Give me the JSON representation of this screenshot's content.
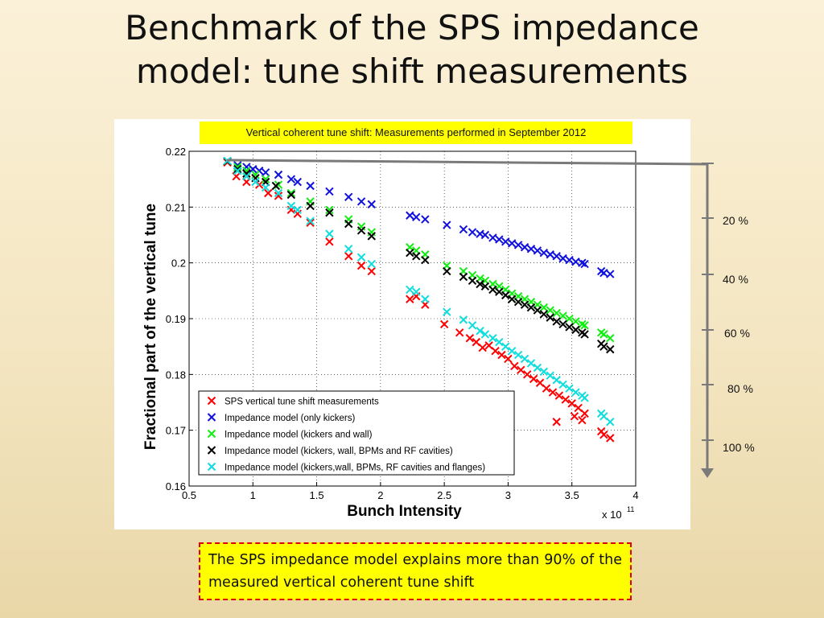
{
  "slide": {
    "title_line1": "Benchmark of the SPS impedance",
    "title_line2": "model: tune shift measurements",
    "plot_caption": "Vertical coherent tune shift: Measurements performed in September 2012",
    "conclusion": "The SPS impedance model explains more than 90% of the measured vertical coherent tune shift"
  },
  "scale_bar": {
    "labels": [
      "20 %",
      "40 %",
      "60 %",
      "80 %",
      "100 %"
    ]
  },
  "chart_data": {
    "type": "scatter",
    "xlabel": "Bunch Intensity",
    "ylabel": "Fractional part of the vertical tune",
    "x_multiplier_label": "x 10",
    "x_multiplier_exp": "11",
    "xlim": [
      0.5,
      4
    ],
    "ylim": [
      0.16,
      0.22
    ],
    "xticks": [
      "0.5",
      "1",
      "1.5",
      "2",
      "2.5",
      "3",
      "3.5",
      "4"
    ],
    "yticks": [
      "0.16",
      "0.17",
      "0.18",
      "0.19",
      "0.2",
      "0.21",
      "0.22"
    ],
    "grid": true,
    "legend_position": "bottom-left",
    "series": [
      {
        "name": "SPS vertical tune shift measurements",
        "color": "#ff0000",
        "points": [
          [
            0.8,
            0.218
          ],
          [
            0.87,
            0.2155
          ],
          [
            0.95,
            0.2145
          ],
          [
            1.05,
            0.214
          ],
          [
            1.12,
            0.2125
          ],
          [
            1.2,
            0.212
          ],
          [
            1.3,
            0.2095
          ],
          [
            1.35,
            0.2088
          ],
          [
            1.45,
            0.2072
          ],
          [
            1.6,
            0.2038
          ],
          [
            1.75,
            0.2012
          ],
          [
            1.85,
            0.1995
          ],
          [
            1.93,
            0.1985
          ],
          [
            2.23,
            0.1935
          ],
          [
            2.28,
            0.194
          ],
          [
            2.35,
            0.1925
          ],
          [
            2.5,
            0.189
          ],
          [
            2.62,
            0.1875
          ],
          [
            2.7,
            0.1865
          ],
          [
            2.75,
            0.1858
          ],
          [
            2.8,
            0.1848
          ],
          [
            2.85,
            0.1852
          ],
          [
            2.9,
            0.1842
          ],
          [
            2.95,
            0.1835
          ],
          [
            3.0,
            0.1828
          ],
          [
            3.05,
            0.1815
          ],
          [
            3.1,
            0.1808
          ],
          [
            3.15,
            0.18
          ],
          [
            3.2,
            0.1792
          ],
          [
            3.25,
            0.1785
          ],
          [
            3.3,
            0.1775
          ],
          [
            3.35,
            0.1768
          ],
          [
            3.4,
            0.1762
          ],
          [
            3.45,
            0.1755
          ],
          [
            3.5,
            0.1748
          ],
          [
            3.55,
            0.174
          ],
          [
            3.6,
            0.173
          ],
          [
            3.38,
            0.1715
          ],
          [
            3.52,
            0.1725
          ],
          [
            3.58,
            0.1718
          ],
          [
            3.73,
            0.1698
          ],
          [
            3.75,
            0.1692
          ],
          [
            3.8,
            0.1686
          ]
        ]
      },
      {
        "name": "Impedance model (only kickers)",
        "color": "#1111dd",
        "points": [
          [
            0.8,
            0.2182
          ],
          [
            0.88,
            0.2175
          ],
          [
            0.95,
            0.2172
          ],
          [
            1.0,
            0.2168
          ],
          [
            1.05,
            0.2165
          ],
          [
            1.1,
            0.2162
          ],
          [
            1.2,
            0.2158
          ],
          [
            1.3,
            0.215
          ],
          [
            1.35,
            0.2145
          ],
          [
            1.45,
            0.2138
          ],
          [
            1.6,
            0.2128
          ],
          [
            1.75,
            0.2118
          ],
          [
            1.85,
            0.211
          ],
          [
            1.93,
            0.2105
          ],
          [
            2.23,
            0.2085
          ],
          [
            2.28,
            0.2082
          ],
          [
            2.35,
            0.2078
          ],
          [
            2.52,
            0.2068
          ],
          [
            2.65,
            0.206
          ],
          [
            2.72,
            0.2055
          ],
          [
            2.78,
            0.2052
          ],
          [
            2.82,
            0.205
          ],
          [
            2.88,
            0.2045
          ],
          [
            2.93,
            0.2042
          ],
          [
            2.98,
            0.2038
          ],
          [
            3.03,
            0.2035
          ],
          [
            3.08,
            0.2032
          ],
          [
            3.13,
            0.2028
          ],
          [
            3.18,
            0.2025
          ],
          [
            3.23,
            0.2022
          ],
          [
            3.28,
            0.2018
          ],
          [
            3.33,
            0.2015
          ],
          [
            3.38,
            0.2012
          ],
          [
            3.43,
            0.2008
          ],
          [
            3.48,
            0.2005
          ],
          [
            3.53,
            0.2002
          ],
          [
            3.58,
            0.2
          ],
          [
            3.6,
            0.1998
          ],
          [
            3.73,
            0.1985
          ],
          [
            3.75,
            0.1982
          ],
          [
            3.8,
            0.198
          ]
        ]
      },
      {
        "name": "Impedance model (kickers and wall)",
        "color": "#11ee11",
        "points": [
          [
            0.8,
            0.2182
          ],
          [
            0.88,
            0.2172
          ],
          [
            0.95,
            0.2165
          ],
          [
            1.02,
            0.2158
          ],
          [
            1.1,
            0.215
          ],
          [
            1.2,
            0.214
          ],
          [
            1.3,
            0.2125
          ],
          [
            1.45,
            0.211
          ],
          [
            1.6,
            0.2095
          ],
          [
            1.75,
            0.2078
          ],
          [
            1.85,
            0.2065
          ],
          [
            1.93,
            0.2055
          ],
          [
            2.23,
            0.2028
          ],
          [
            2.28,
            0.2022
          ],
          [
            2.35,
            0.2015
          ],
          [
            2.52,
            0.1995
          ],
          [
            2.65,
            0.1985
          ],
          [
            2.72,
            0.1978
          ],
          [
            2.78,
            0.1972
          ],
          [
            2.82,
            0.1968
          ],
          [
            2.88,
            0.1962
          ],
          [
            2.93,
            0.1958
          ],
          [
            2.98,
            0.1952
          ],
          [
            3.03,
            0.1945
          ],
          [
            3.08,
            0.194
          ],
          [
            3.13,
            0.1935
          ],
          [
            3.18,
            0.193
          ],
          [
            3.23,
            0.1925
          ],
          [
            3.28,
            0.192
          ],
          [
            3.33,
            0.1915
          ],
          [
            3.38,
            0.191
          ],
          [
            3.43,
            0.1905
          ],
          [
            3.48,
            0.19
          ],
          [
            3.53,
            0.1895
          ],
          [
            3.58,
            0.189
          ],
          [
            3.6,
            0.1888
          ],
          [
            3.73,
            0.1875
          ],
          [
            3.75,
            0.1872
          ],
          [
            3.8,
            0.1865
          ]
        ]
      },
      {
        "name": "Impedance model (kickers, wall, BPMs and RF cavities)",
        "color": "#000000",
        "points": [
          [
            0.8,
            0.2182
          ],
          [
            0.88,
            0.2168
          ],
          [
            0.95,
            0.216
          ],
          [
            1.02,
            0.2152
          ],
          [
            1.1,
            0.2145
          ],
          [
            1.18,
            0.2138
          ],
          [
            1.3,
            0.2122
          ],
          [
            1.45,
            0.2102
          ],
          [
            1.6,
            0.209
          ],
          [
            1.75,
            0.207
          ],
          [
            1.85,
            0.2058
          ],
          [
            1.93,
            0.2048
          ],
          [
            2.23,
            0.2018
          ],
          [
            2.28,
            0.2012
          ],
          [
            2.35,
            0.2005
          ],
          [
            2.52,
            0.1985
          ],
          [
            2.65,
            0.1975
          ],
          [
            2.72,
            0.1968
          ],
          [
            2.78,
            0.1962
          ],
          [
            2.82,
            0.1958
          ],
          [
            2.88,
            0.1952
          ],
          [
            2.93,
            0.1948
          ],
          [
            2.98,
            0.1942
          ],
          [
            3.03,
            0.1935
          ],
          [
            3.08,
            0.193
          ],
          [
            3.13,
            0.1925
          ],
          [
            3.18,
            0.192
          ],
          [
            3.23,
            0.1915
          ],
          [
            3.28,
            0.1908
          ],
          [
            3.33,
            0.1902
          ],
          [
            3.38,
            0.1895
          ],
          [
            3.43,
            0.189
          ],
          [
            3.48,
            0.1885
          ],
          [
            3.53,
            0.188
          ],
          [
            3.58,
            0.1875
          ],
          [
            3.6,
            0.1872
          ],
          [
            3.73,
            0.1855
          ],
          [
            3.75,
            0.185
          ],
          [
            3.8,
            0.1845
          ]
        ]
      },
      {
        "name": "Impedance model (kickers,wall, BPMs, RF cavities and flanges)",
        "color": "#11dddd",
        "points": [
          [
            0.8,
            0.2183
          ],
          [
            0.88,
            0.2165
          ],
          [
            0.95,
            0.2155
          ],
          [
            1.02,
            0.2145
          ],
          [
            1.1,
            0.2135
          ],
          [
            1.2,
            0.2125
          ],
          [
            1.3,
            0.2102
          ],
          [
            1.35,
            0.2095
          ],
          [
            1.45,
            0.2075
          ],
          [
            1.6,
            0.2052
          ],
          [
            1.75,
            0.2025
          ],
          [
            1.85,
            0.201
          ],
          [
            1.93,
            0.1998
          ],
          [
            2.23,
            0.1952
          ],
          [
            2.28,
            0.1948
          ],
          [
            2.35,
            0.1935
          ],
          [
            2.52,
            0.1912
          ],
          [
            2.65,
            0.1898
          ],
          [
            2.72,
            0.1888
          ],
          [
            2.78,
            0.1878
          ],
          [
            2.82,
            0.1872
          ],
          [
            2.88,
            0.1865
          ],
          [
            2.93,
            0.1858
          ],
          [
            2.98,
            0.185
          ],
          [
            3.03,
            0.1842
          ],
          [
            3.08,
            0.1835
          ],
          [
            3.13,
            0.1828
          ],
          [
            3.18,
            0.182
          ],
          [
            3.23,
            0.1812
          ],
          [
            3.28,
            0.1805
          ],
          [
            3.33,
            0.1798
          ],
          [
            3.38,
            0.179
          ],
          [
            3.43,
            0.1782
          ],
          [
            3.48,
            0.1775
          ],
          [
            3.53,
            0.1768
          ],
          [
            3.58,
            0.1762
          ],
          [
            3.6,
            0.1758
          ],
          [
            3.73,
            0.173
          ],
          [
            3.75,
            0.1725
          ],
          [
            3.8,
            0.1715
          ]
        ]
      }
    ]
  }
}
